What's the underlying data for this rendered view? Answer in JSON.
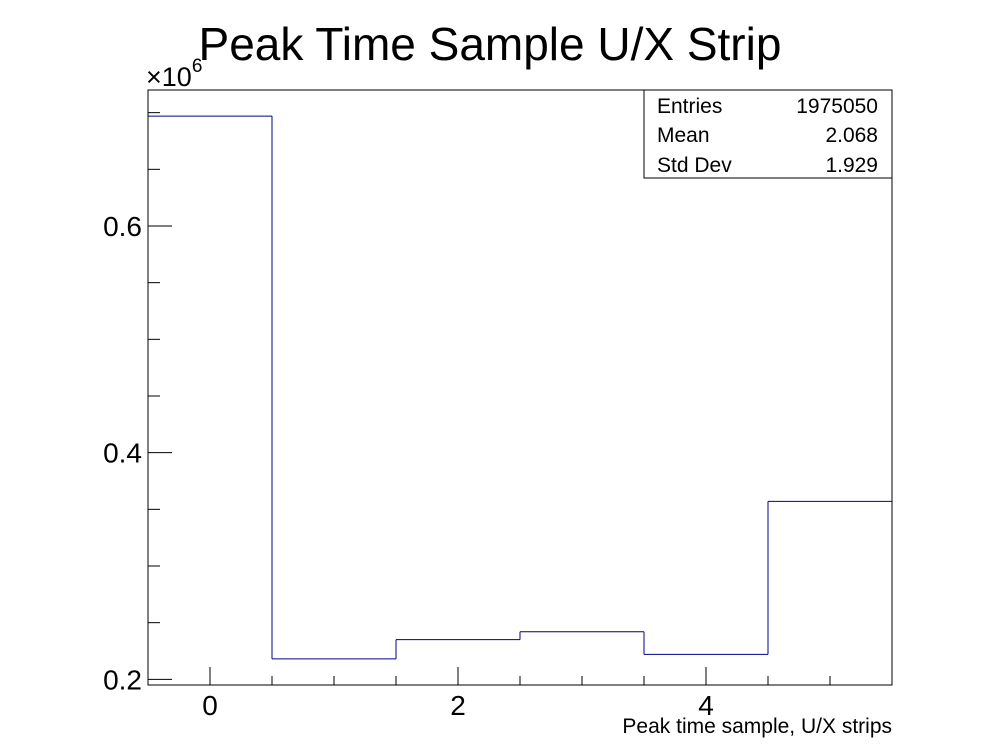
{
  "chart_data": {
    "type": "bar",
    "style": "step-histogram",
    "title": "Peak Time Sample U/X Strip",
    "xlabel": "Peak time sample, U/X strips",
    "ylabel": "",
    "y_multiplier_label": "×10",
    "y_multiplier_exponent": "6",
    "categories": [
      "0",
      "1",
      "2",
      "3",
      "4",
      "5"
    ],
    "bin_edges": [
      -0.5,
      0.5,
      1.5,
      2.5,
      3.5,
      4.5,
      5.5
    ],
    "values": [
      0.697,
      0.218,
      0.235,
      0.242,
      0.222,
      0.357
    ],
    "xlim": [
      -0.5,
      5.5
    ],
    "ylim": [
      0.195,
      0.72
    ],
    "x_ticks": [
      "0",
      "2",
      "4"
    ],
    "y_ticks": [
      "0.2",
      "0.4",
      "0.6"
    ],
    "line_color": "#00008b",
    "grid": false,
    "stats_box": {
      "position": "top-right",
      "rows": [
        {
          "label": "Entries",
          "value": "1975050"
        },
        {
          "label": "Mean",
          "value": "2.068"
        },
        {
          "label": "Std Dev",
          "value": "1.929"
        }
      ]
    }
  }
}
